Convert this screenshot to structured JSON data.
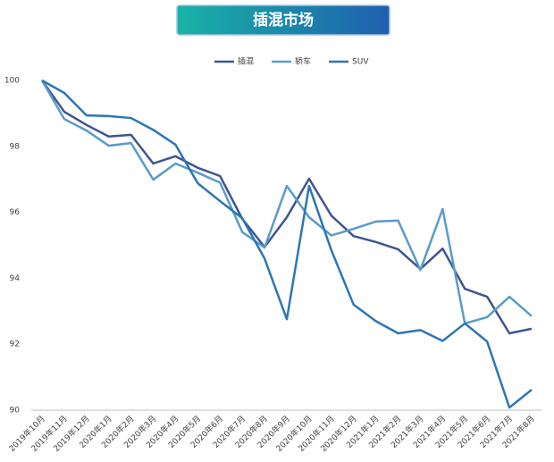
{
  "chart_data": {
    "type": "line",
    "title": "插混市场",
    "categories": [
      "2019年10月",
      "2019年11月",
      "2019年12月",
      "2020年1月",
      "2020年2月",
      "2020年3月",
      "2020年4月",
      "2020年5月",
      "2020年6月",
      "2020年7月",
      "2020年8月",
      "2020年9月",
      "2020年10月",
      "2020年11月",
      "2020年12月",
      "2021年1月",
      "2021年2月",
      "2021年3月",
      "2021年4月",
      "2021年5月",
      "2021年6月",
      "2021年7月",
      "2021年8月"
    ],
    "series": [
      {
        "name": "插混",
        "color": "#3f5591",
        "values": [
          100,
          99.05,
          98.65,
          98.3,
          98.35,
          97.48,
          97.7,
          97.35,
          97.1,
          95.8,
          94.95,
          95.85,
          97.02,
          95.9,
          95.28,
          95.1,
          94.88,
          94.28,
          94.9,
          93.68,
          93.44,
          92.33,
          92.47
        ]
      },
      {
        "name": "轿车",
        "color": "#5b9bc8",
        "values": [
          100,
          98.83,
          98.48,
          98.02,
          98.1,
          96.99,
          97.48,
          97.2,
          96.9,
          95.4,
          94.93,
          96.8,
          95.85,
          95.3,
          95.5,
          95.72,
          95.75,
          94.25,
          96.1,
          92.63,
          92.82,
          93.44,
          92.85
        ]
      },
      {
        "name": "SUV",
        "color": "#2e75b6",
        "values": [
          100,
          99.62,
          98.94,
          98.92,
          98.86,
          98.5,
          98.05,
          96.88,
          96.34,
          95.82,
          94.6,
          92.76,
          96.8,
          94.85,
          93.2,
          92.7,
          92.33,
          92.43,
          92.1,
          92.63,
          92.08,
          90.08,
          90.62
        ]
      }
    ],
    "ylim": [
      90,
      100
    ],
    "yticks": [
      90,
      92,
      94,
      96,
      98,
      100
    ],
    "grid": false,
    "legend": "top"
  }
}
